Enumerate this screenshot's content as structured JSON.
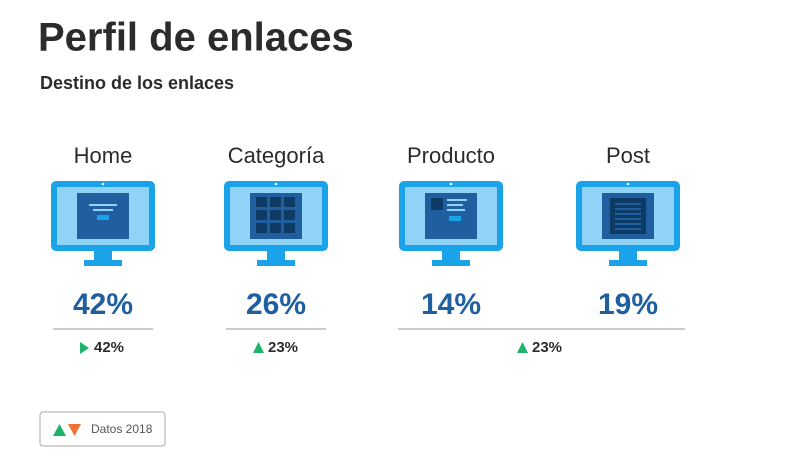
{
  "header": {
    "title": "Perfil de enlaces",
    "subtitle": "Destino de los enlaces"
  },
  "items": [
    {
      "label": "Home",
      "value": "42%"
    },
    {
      "label": "Categoría",
      "value": "26%"
    },
    {
      "label": "Producto",
      "value": "14%"
    },
    {
      "label": "Post",
      "value": "19%"
    }
  ],
  "changes": [
    "42%",
    "23%",
    "23%"
  ],
  "legend": {
    "label": "Datos 2018"
  }
}
